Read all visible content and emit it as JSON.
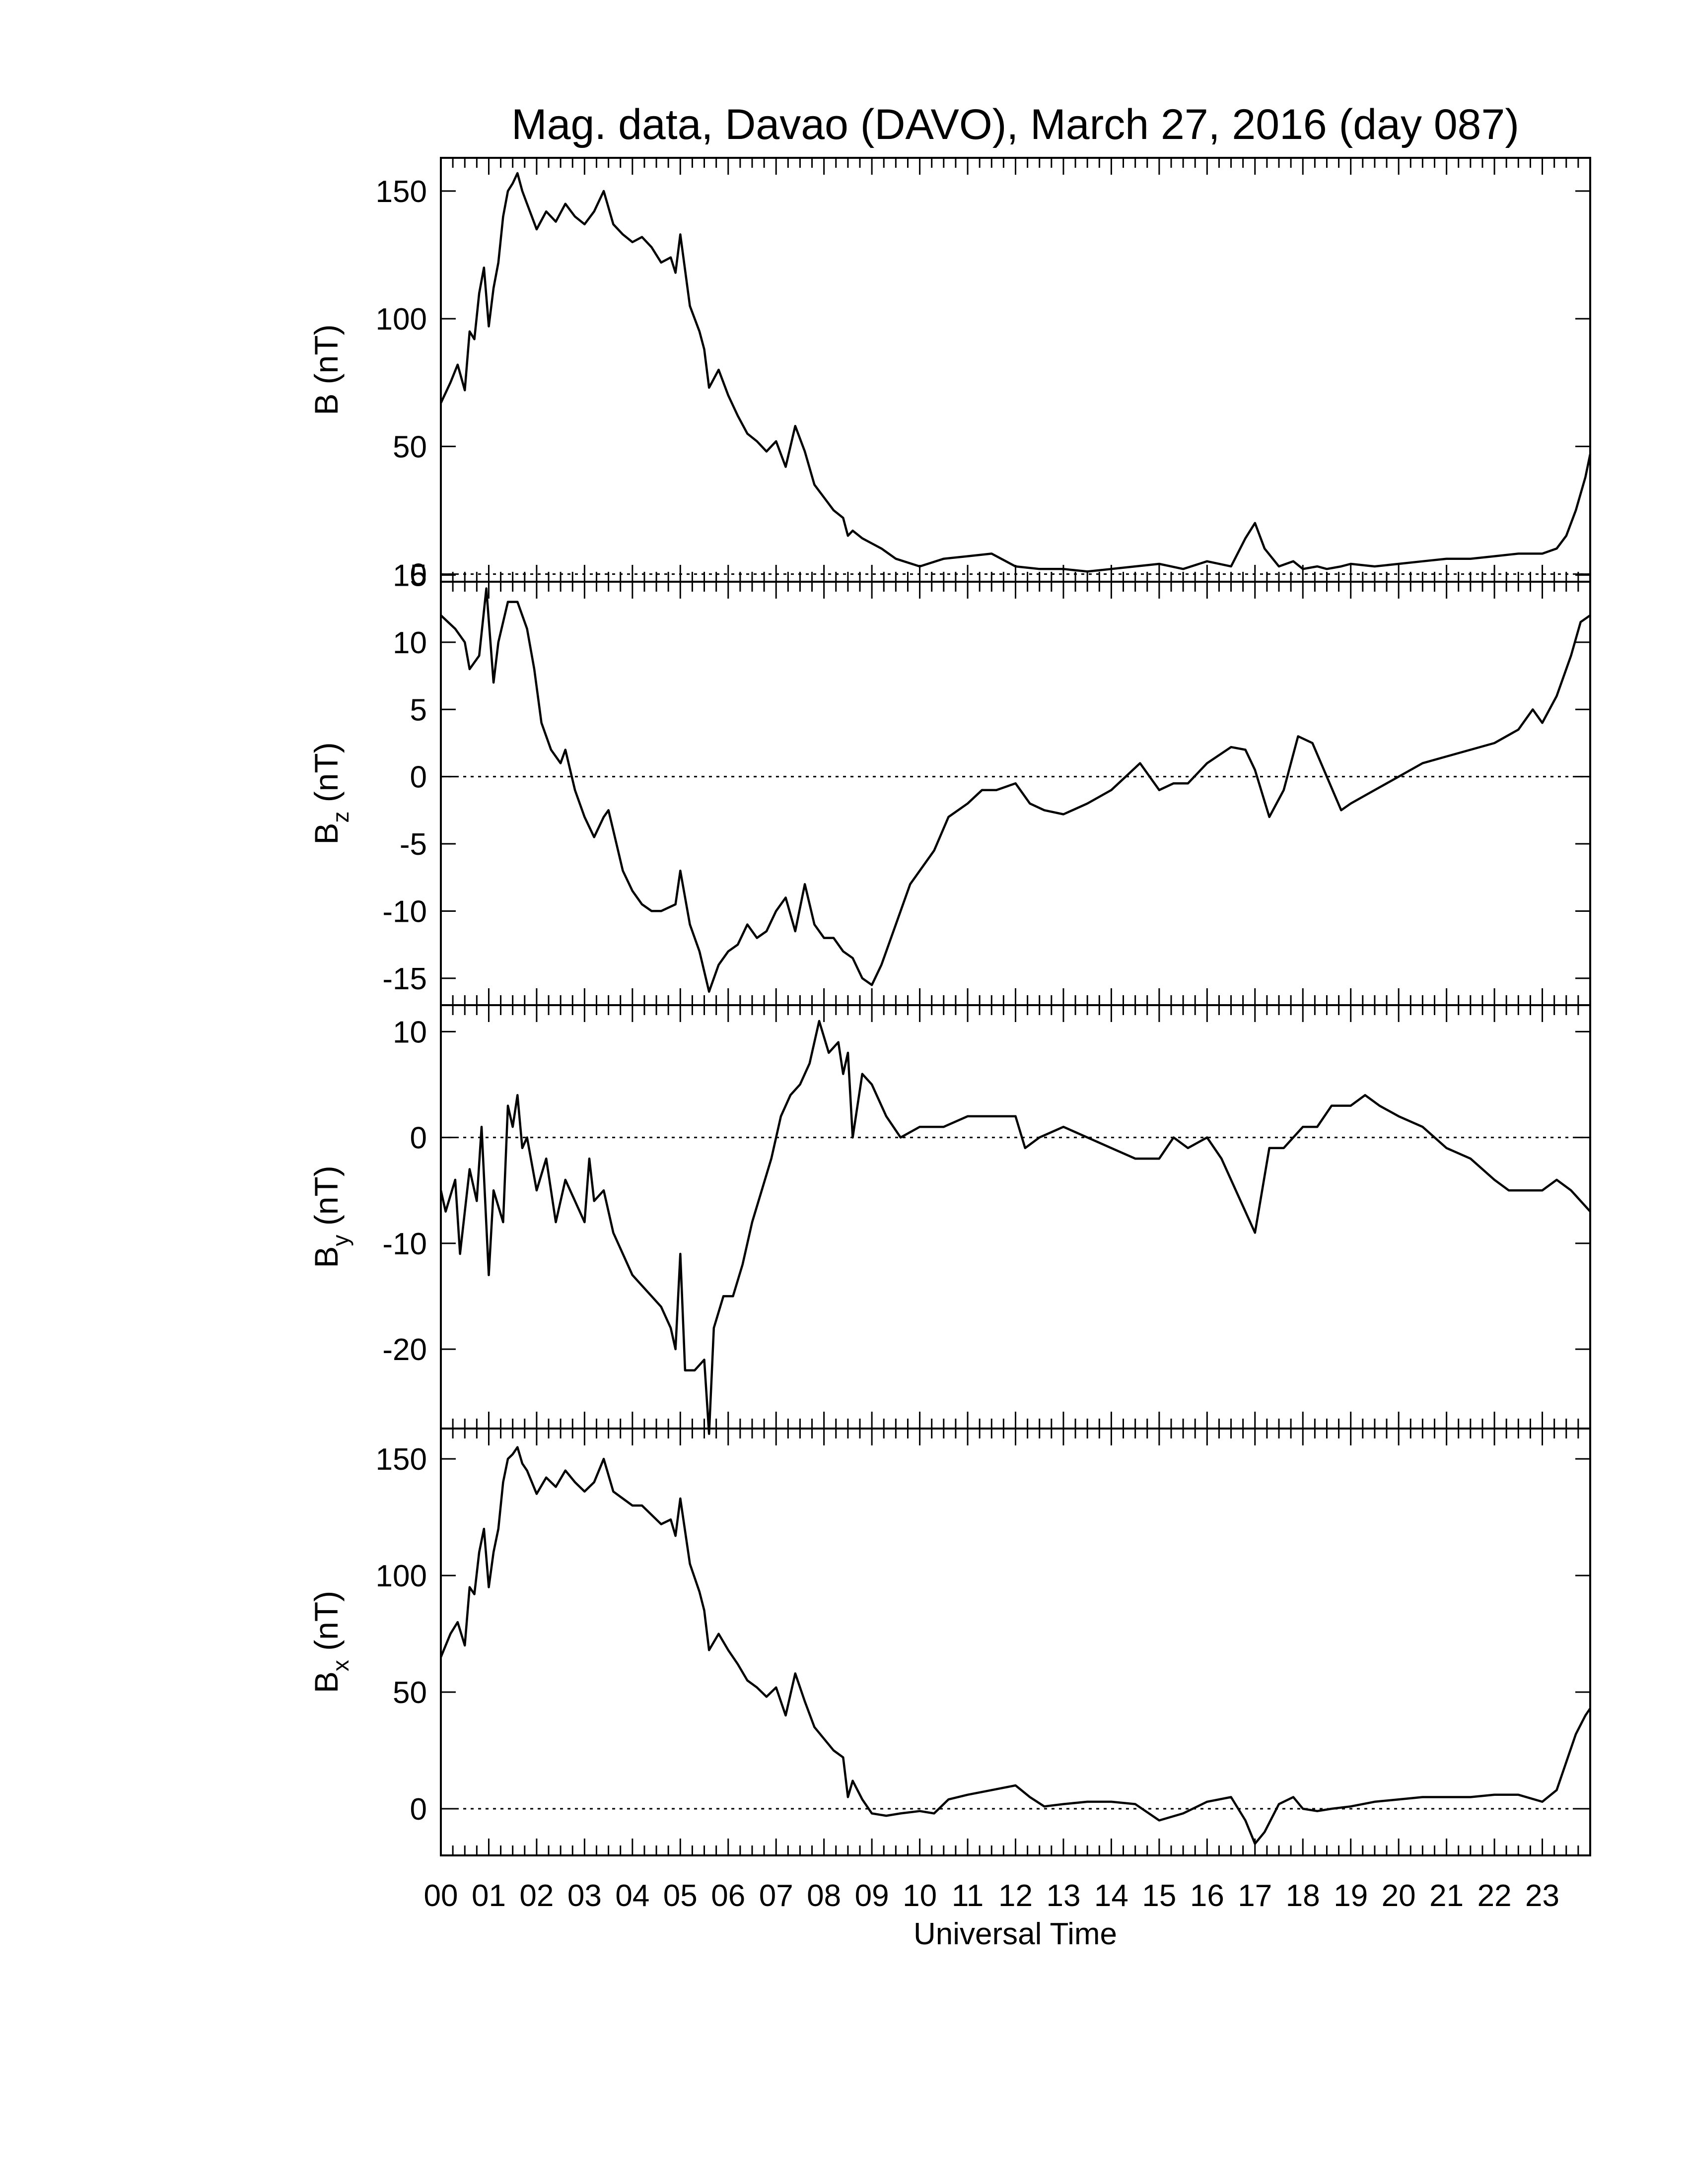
{
  "chart_data": {
    "type": "line",
    "title": "Mag. data, Davao (DAVO), March 27, 2016 (day 087)",
    "xlabel": "Universal Time",
    "xlim": [
      0,
      24
    ],
    "x_tick_labels": [
      "00",
      "01",
      "02",
      "03",
      "04",
      "05",
      "06",
      "07",
      "08",
      "09",
      "10",
      "11",
      "12",
      "13",
      "14",
      "15",
      "16",
      "17",
      "18",
      "19",
      "20",
      "21",
      "22",
      "23"
    ],
    "panels": [
      {
        "id": "B",
        "ylabel": "B (nT)",
        "ylim": [
          -3,
          163
        ],
        "yticks": [
          0,
          50,
          100,
          150
        ],
        "zero_line": true,
        "series": [
          {
            "x": [
              0,
              0.2,
              0.35,
              0.5,
              0.6,
              0.7,
              0.8,
              0.9,
              1.0,
              1.1,
              1.2,
              1.3,
              1.4,
              1.5,
              1.6,
              1.7,
              1.8,
              1.9,
              2.0,
              2.2,
              2.4,
              2.6,
              2.8,
              3.0,
              3.2,
              3.4,
              3.6,
              3.8,
              4.0,
              4.2,
              4.4,
              4.6,
              4.8,
              4.9,
              5.0,
              5.2,
              5.4,
              5.5,
              5.6,
              5.8,
              6.0,
              6.2,
              6.4,
              6.6,
              6.8,
              7.0,
              7.2,
              7.4,
              7.6,
              7.8,
              8.0,
              8.2,
              8.4,
              8.5,
              8.6,
              8.8,
              9.0,
              9.2,
              9.5,
              10.0,
              10.5,
              11.0,
              11.5,
              12.0,
              12.5,
              13.0,
              13.5,
              14.0,
              14.5,
              15.0,
              15.5,
              16.0,
              16.5,
              16.8,
              17.0,
              17.2,
              17.5,
              17.8,
              18.0,
              18.3,
              18.5,
              18.8,
              19.0,
              19.5,
              20.0,
              20.5,
              21.0,
              21.5,
              22.0,
              22.5,
              23.0,
              23.3,
              23.5,
              23.7,
              23.9,
              24.0
            ],
            "y": [
              67,
              75,
              82,
              72,
              95,
              92,
              110,
              120,
              97,
              112,
              122,
              140,
              150,
              153,
              157,
              150,
              145,
              140,
              135,
              142,
              138,
              145,
              140,
              137,
              142,
              150,
              137,
              133,
              130,
              132,
              128,
              122,
              124,
              118,
              133,
              105,
              95,
              88,
              73,
              80,
              70,
              62,
              55,
              52,
              48,
              52,
              42,
              58,
              48,
              35,
              30,
              25,
              22,
              15,
              17,
              14,
              12,
              10,
              6,
              3,
              6,
              7,
              8,
              3,
              2,
              2,
              1,
              2,
              3,
              4,
              2,
              5,
              3,
              14,
              20,
              10,
              3,
              5,
              2,
              3,
              2,
              3,
              4,
              3,
              4,
              5,
              6,
              6,
              7,
              8,
              8,
              10,
              15,
              25,
              38,
              47
            ]
          }
        ]
      },
      {
        "id": "Bz",
        "ylabel": "B_z (nT)",
        "ylim": [
          -17,
          14.5
        ],
        "yticks": [
          -15,
          -10,
          -5,
          0,
          5,
          10,
          15
        ],
        "zero_line": true,
        "series": [
          {
            "x": [
              0,
              0.3,
              0.5,
              0.6,
              0.8,
              0.95,
              1.1,
              1.2,
              1.4,
              1.6,
              1.8,
              1.95,
              2.1,
              2.3,
              2.5,
              2.6,
              2.8,
              3.0,
              3.2,
              3.4,
              3.5,
              3.6,
              3.8,
              4.0,
              4.2,
              4.4,
              4.6,
              4.9,
              5.0,
              5.2,
              5.4,
              5.6,
              5.8,
              6.0,
              6.2,
              6.4,
              6.6,
              6.8,
              7.0,
              7.2,
              7.4,
              7.6,
              7.8,
              8.0,
              8.2,
              8.4,
              8.6,
              8.8,
              9.0,
              9.2,
              9.5,
              9.8,
              10.0,
              10.3,
              10.6,
              11.0,
              11.3,
              11.6,
              12.0,
              12.3,
              12.6,
              13.0,
              13.5,
              14.0,
              14.3,
              14.6,
              15.0,
              15.3,
              15.6,
              16.0,
              16.5,
              16.8,
              17.0,
              17.3,
              17.6,
              17.9,
              18.2,
              18.5,
              18.8,
              19.0,
              19.5,
              20.0,
              20.5,
              21.0,
              21.5,
              22.0,
              22.5,
              22.8,
              23.0,
              23.3,
              23.6,
              23.8,
              24.0
            ],
            "y": [
              12,
              11,
              10,
              8,
              9,
              14,
              7,
              10,
              13,
              13,
              11,
              8,
              4,
              2,
              1,
              2,
              -1,
              -3,
              -4.5,
              -3,
              -2.5,
              -4,
              -7,
              -8.5,
              -9.5,
              -10,
              -10,
              -9.5,
              -7,
              -11,
              -13,
              -16,
              -14,
              -13,
              -12.5,
              -11,
              -12,
              -11.5,
              -10,
              -9,
              -11.5,
              -8,
              -11,
              -12,
              -12,
              -13,
              -13.5,
              -15,
              -15.5,
              -14,
              -11,
              -8,
              -7,
              -5.5,
              -3,
              -2,
              -1,
              -1,
              -0.5,
              -2,
              -2.5,
              -2.8,
              -2,
              -1,
              0,
              1,
              -1,
              -0.5,
              -0.5,
              1,
              2.2,
              2,
              0.5,
              -3,
              -1,
              3,
              2.5,
              0,
              -2.5,
              -2,
              -1,
              0,
              1,
              1.5,
              2,
              2.5,
              3.5,
              5,
              4,
              6,
              9,
              11.5,
              12
            ]
          }
        ]
      },
      {
        "id": "By",
        "ylabel": "B_y (nT)",
        "ylim": [
          -27.5,
          12.5
        ],
        "yticks": [
          -20,
          -10,
          0,
          10
        ],
        "zero_line": true,
        "series": [
          {
            "x": [
              0,
              0.1,
              0.3,
              0.4,
              0.6,
              0.75,
              0.85,
              1.0,
              1.1,
              1.3,
              1.4,
              1.5,
              1.6,
              1.7,
              1.8,
              2.0,
              2.2,
              2.4,
              2.6,
              2.8,
              3.0,
              3.1,
              3.2,
              3.4,
              3.6,
              3.8,
              4.0,
              4.2,
              4.4,
              4.6,
              4.8,
              4.9,
              5.0,
              5.1,
              5.3,
              5.5,
              5.6,
              5.7,
              5.9,
              6.1,
              6.3,
              6.5,
              6.7,
              6.9,
              7.1,
              7.3,
              7.5,
              7.7,
              7.9,
              8.1,
              8.3,
              8.4,
              8.5,
              8.6,
              8.8,
              9.0,
              9.3,
              9.6,
              10.0,
              10.5,
              11.0,
              11.5,
              12.0,
              12.2,
              12.5,
              13.0,
              13.5,
              14.0,
              14.5,
              15.0,
              15.3,
              15.6,
              16.0,
              16.3,
              16.6,
              17.0,
              17.3,
              17.6,
              18.0,
              18.3,
              18.6,
              19.0,
              19.3,
              19.6,
              20.0,
              20.5,
              21.0,
              21.5,
              22.0,
              22.3,
              22.6,
              23.0,
              23.3,
              23.6,
              24.0
            ],
            "y": [
              -5,
              -7,
              -4,
              -11,
              -3,
              -6,
              1,
              -13,
              -5,
              -8,
              3,
              1,
              4,
              -1,
              0,
              -5,
              -2,
              -8,
              -4,
              -6,
              -8,
              -2,
              -6,
              -5,
              -9,
              -11,
              -13,
              -14,
              -15,
              -16,
              -18,
              -20,
              -11,
              -22,
              -22,
              -21,
              -28,
              -18,
              -15,
              -15,
              -12,
              -8,
              -5,
              -2,
              2,
              4,
              5,
              7,
              11,
              8,
              9,
              6,
              8,
              0,
              6,
              5,
              2,
              0,
              1,
              1,
              2,
              2,
              2,
              -1,
              0,
              1,
              0,
              -1,
              -2,
              -2,
              0,
              -1,
              0,
              -2,
              -5,
              -9,
              -1,
              -1,
              1,
              1,
              3,
              3,
              4,
              3,
              2,
              1,
              -1,
              -2,
              -4,
              -5,
              -5,
              -5,
              -4,
              -5,
              -7
            ]
          }
        ]
      },
      {
        "id": "Bx",
        "ylabel": "B_x (nT)",
        "ylim": [
          -20,
          163
        ],
        "yticks": [
          0,
          50,
          100,
          150
        ],
        "zero_line": true,
        "series": [
          {
            "x": [
              0,
              0.2,
              0.35,
              0.5,
              0.6,
              0.7,
              0.8,
              0.9,
              1.0,
              1.1,
              1.2,
              1.3,
              1.4,
              1.5,
              1.6,
              1.7,
              1.8,
              1.9,
              2.0,
              2.2,
              2.4,
              2.6,
              2.8,
              3.0,
              3.2,
              3.4,
              3.6,
              3.8,
              4.0,
              4.2,
              4.4,
              4.6,
              4.8,
              4.9,
              5.0,
              5.2,
              5.4,
              5.5,
              5.6,
              5.8,
              6.0,
              6.2,
              6.4,
              6.6,
              6.8,
              7.0,
              7.2,
              7.4,
              7.6,
              7.8,
              8.0,
              8.2,
              8.4,
              8.5,
              8.6,
              8.8,
              9.0,
              9.3,
              9.6,
              10.0,
              10.3,
              10.6,
              11.0,
              11.5,
              12.0,
              12.3,
              12.6,
              13.0,
              13.5,
              14.0,
              14.5,
              15.0,
              15.5,
              16.0,
              16.5,
              16.8,
              17.0,
              17.2,
              17.5,
              17.8,
              18.0,
              18.3,
              18.6,
              19.0,
              19.5,
              20.0,
              20.5,
              21.0,
              21.5,
              22.0,
              22.5,
              23.0,
              23.3,
              23.5,
              23.7,
              23.9,
              24.0
            ],
            "y": [
              65,
              75,
              80,
              70,
              95,
              92,
              110,
              120,
              95,
              110,
              120,
              140,
              150,
              152,
              155,
              148,
              145,
              140,
              135,
              142,
              138,
              145,
              140,
              136,
              140,
              150,
              136,
              133,
              130,
              130,
              126,
              122,
              124,
              117,
              133,
              105,
              93,
              85,
              68,
              75,
              68,
              62,
              55,
              52,
              48,
              52,
              40,
              58,
              46,
              35,
              30,
              25,
              22,
              5,
              12,
              4,
              -2,
              -3,
              -2,
              -1,
              -2,
              4,
              6,
              8,
              10,
              5,
              1,
              2,
              3,
              3,
              2,
              -5,
              -2,
              3,
              5,
              -5,
              -15,
              -10,
              2,
              5,
              0,
              -1,
              0,
              1,
              3,
              4,
              5,
              5,
              5,
              6,
              6,
              3,
              8,
              20,
              32,
              40,
              43
            ]
          }
        ]
      }
    ]
  }
}
